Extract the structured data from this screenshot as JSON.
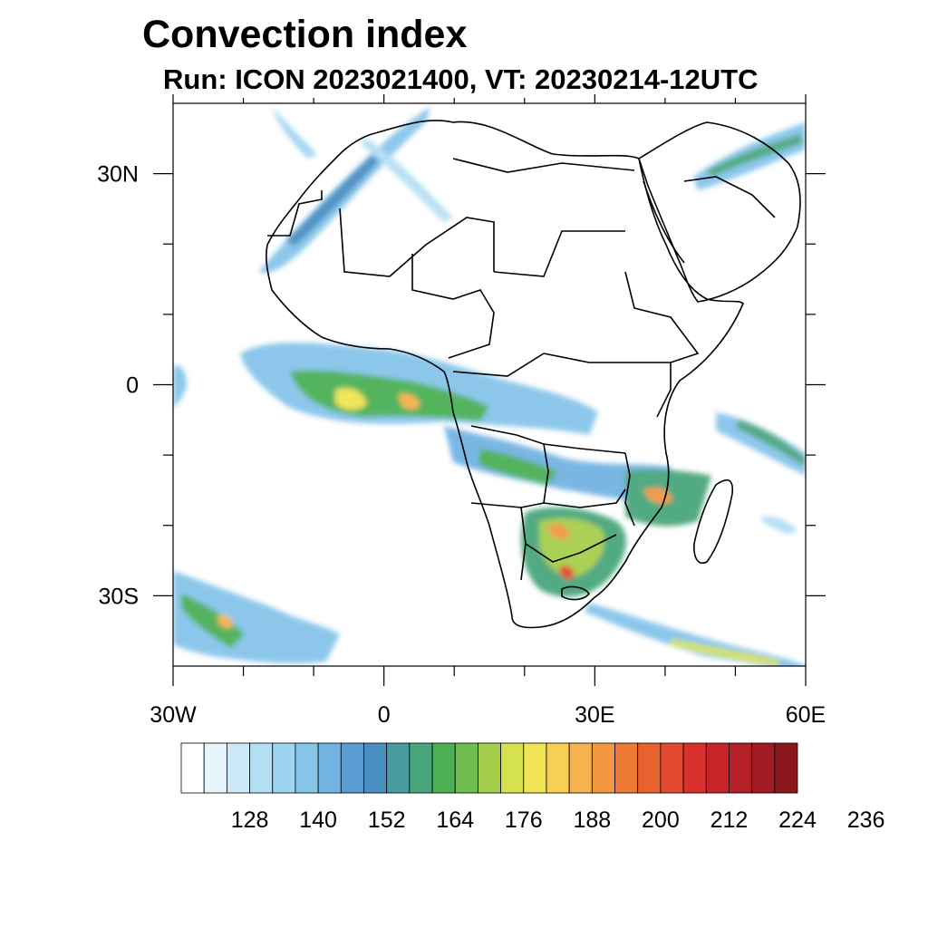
{
  "header": {
    "title": "Convection index",
    "subtitle": "Run: ICON 2023021400,  VT: 20230214-12UTC"
  },
  "map": {
    "lon_range": [
      -30,
      60
    ],
    "lat_range": [
      -40,
      40
    ],
    "x_tick_labels": [
      {
        "lon": -30,
        "label": "30W"
      },
      {
        "lon": 0,
        "label": "0"
      },
      {
        "lon": 30,
        "label": "30E"
      },
      {
        "lon": 60,
        "label": "60E"
      }
    ],
    "y_tick_labels": [
      {
        "lat": 30,
        "label": "30N"
      },
      {
        "lat": 0,
        "label": "0"
      },
      {
        "lat": -30,
        "label": "30S"
      }
    ],
    "minor_lon_ticks": [
      -20,
      -10,
      10,
      20,
      40,
      50
    ],
    "minor_lat_ticks": [
      20,
      10,
      -10,
      -20
    ]
  },
  "colorbar": {
    "colors": [
      "#ffffff",
      "#e6f4fc",
      "#cde9f7",
      "#b3def4",
      "#9dd4f2",
      "#86c4ea",
      "#72b3e2",
      "#5a9bd3",
      "#4a8fc2",
      "#479c9f",
      "#48a67c",
      "#4cb055",
      "#71bd4f",
      "#a6ce4d",
      "#d5e14d",
      "#f0e454",
      "#f8cf55",
      "#f6b24c",
      "#f39740",
      "#ee7a35",
      "#e8622f",
      "#e14a2e",
      "#d7302d",
      "#c82329",
      "#b51f26",
      "#a11b22",
      "#8b161b"
    ],
    "labels": [
      "128",
      "140",
      "152",
      "164",
      "176",
      "188",
      "200",
      "212",
      "224",
      "236"
    ]
  }
}
